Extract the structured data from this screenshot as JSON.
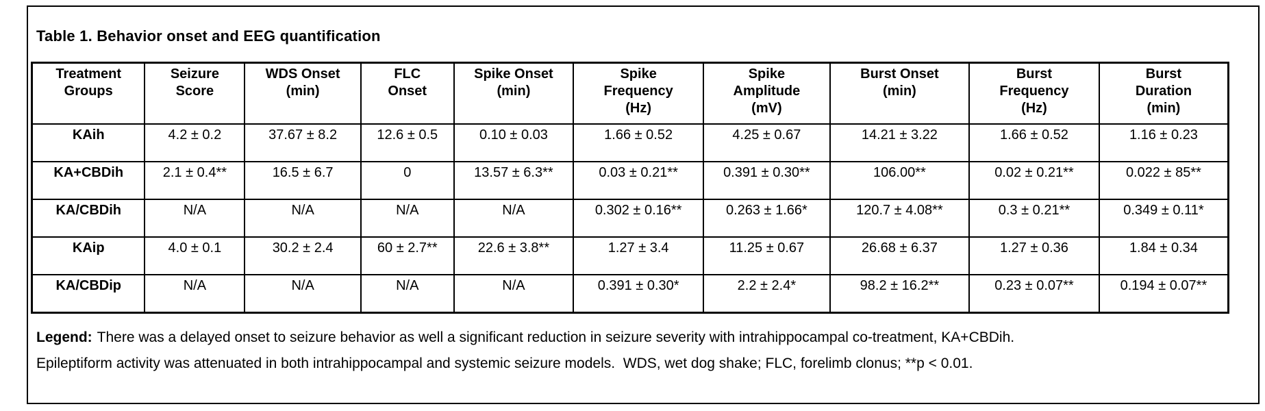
{
  "title": "Table 1. Behavior onset and EEG quantification",
  "table": {
    "columns": [
      {
        "label": "Treatment\nGroups"
      },
      {
        "label": "Seizure\nScore"
      },
      {
        "label": "WDS Onset\n(min)"
      },
      {
        "label": "FLC\nOnset"
      },
      {
        "label": "Spike Onset\n(min)"
      },
      {
        "label": "Spike\nFrequency\n(Hz)"
      },
      {
        "label": "Spike\nAmplitude\n(mV)"
      },
      {
        "label": "Burst Onset\n(min)"
      },
      {
        "label": "Burst\nFrequency\n(Hz)"
      },
      {
        "label": "Burst\nDuration\n(min)"
      }
    ],
    "rows": [
      {
        "group": "KAih",
        "values": [
          "4.2 ± 0.2",
          "37.67 ± 8.2",
          "12.6 ± 0.5",
          "0.10 ± 0.03",
          "1.66 ± 0.52",
          "4.25 ± 0.67",
          "14.21 ± 3.22",
          "1.66 ± 0.52",
          "1.16 ± 0.23"
        ]
      },
      {
        "group": "KA+CBDih",
        "values": [
          "2.1 ± 0.4**",
          "16.5 ± 6.7",
          "0",
          "13.57 ± 6.3**",
          "0.03 ± 0.21**",
          "0.391 ± 0.30**",
          "106.00**",
          "0.02 ± 0.21**",
          "0.022 ± 85**"
        ]
      },
      {
        "group": "KA/CBDih",
        "values": [
          "N/A",
          "N/A",
          "N/A",
          "N/A",
          "0.302 ± 0.16**",
          "0.263 ± 1.66*",
          "120.7 ± 4.08**",
          "0.3 ± 0.21**",
          "0.349 ± 0.11*"
        ]
      },
      {
        "group": "KAip",
        "values": [
          "4.0 ± 0.1",
          "30.2 ± 2.4",
          "60 ± 2.7**",
          "22.6 ± 3.8**",
          "1.27 ± 3.4",
          "11.25 ± 0.67",
          "26.68 ± 6.37",
          "1.27 ± 0.36",
          "1.84 ± 0.34"
        ]
      },
      {
        "group": "KA/CBDip",
        "values": [
          "N/A",
          "N/A",
          "N/A",
          "N/A",
          "0.391 ± 0.30*",
          "2.2  ± 2.4*",
          "98.2 ± 16.2**",
          "0.23 ± 0.07**",
          "0.194 ± 0.07**"
        ]
      }
    ]
  },
  "legend": {
    "label": "Legend:",
    "line1": "There was a delayed onset to seizure behavior as well a significant reduction in seizure severity with intrahippocampal co-treatment, KA+CBDih.",
    "line2": "Epileptiform activity was attenuated in both intrahippocampal and systemic seizure models.  WDS, wet dog shake; FLC, forelimb clonus; **p < 0.01."
  },
  "colors": {
    "border": "#000000",
    "text": "#000000",
    "background": "#ffffff"
  }
}
